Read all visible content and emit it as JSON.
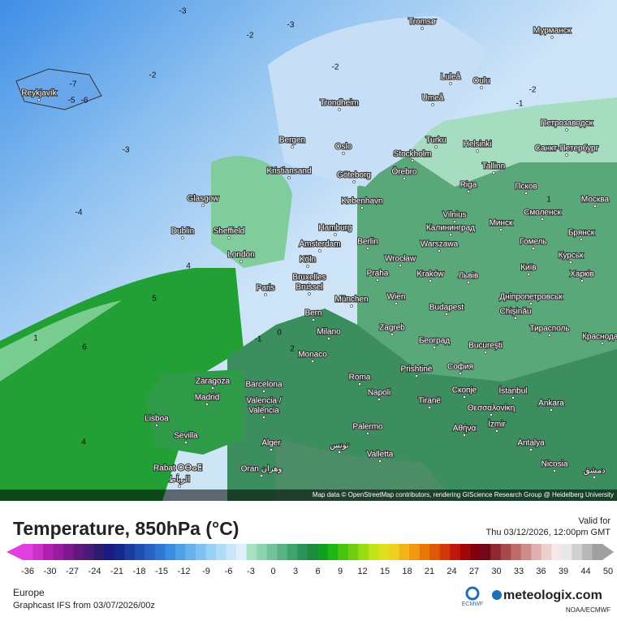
{
  "map": {
    "attribution": "Map data © OpenStreetMap contributors, rendering GIScience Research Group @ Heidelberg University",
    "cities": [
      "Tromsø",
      "Мурманск",
      "Reykjavík",
      "Luleå",
      "Oulu",
      "Umeå",
      "Trondheim",
      "Bergen",
      "Oslo",
      "Turku",
      "Helsinki",
      "Stockholm",
      "Kristiansand",
      "Göteborg",
      "Örebro",
      "Петрозаводск",
      "Санкт-Петербург",
      "Tallinn",
      "Glasgow",
      "København",
      "Riga",
      "Псков",
      "Москва",
      "Dublin",
      "Sheffield",
      "Hamburg",
      "Vilnius",
      "Минск",
      "Смоленск",
      "Брянск",
      "Калининград",
      "London",
      "Amsterdam",
      "Berlin",
      "Warszawa",
      "Гомель",
      "Köln",
      "Курськ",
      "Bruxelles",
      "Brussel",
      "Paris",
      "Wrocław",
      "Praha",
      "Kraków",
      "Львів",
      "Київ",
      "Харків",
      "München",
      "Wien",
      "Дніпропетровськ",
      "Bern",
      "Budapest",
      "Chișinău",
      "Milano",
      "Zagreb",
      "Тирасполь",
      "Monaco",
      "Београд",
      "București",
      "Краснодар",
      "Roma",
      "Prishtinë",
      "София",
      "Zaragoza",
      "Barcelona",
      "Madrid",
      "Napoli",
      "Tiranë",
      "Скопје",
      "İstanbul",
      "Valencia /",
      "València",
      "Θεσσαλονίκη",
      "Ankara",
      "Lisboa",
      "Αθήνα",
      "İzmir",
      "Sevilla",
      "Palermo",
      "Alger",
      "تونس",
      "Antalya",
      "Valletta",
      "Rabat ⵔⴱⴰⵟ",
      "الرباط",
      "Oran وهران",
      "Nicosia",
      "دمشق"
    ],
    "contour_labels": [
      -3,
      -2,
      -3,
      -2,
      -2,
      -7,
      -5,
      -6,
      -3,
      -4,
      4,
      5,
      6,
      1,
      4,
      2,
      -2,
      -1,
      1,
      -1,
      0
    ]
  },
  "legend": {
    "title": "Temperature, 850hPa (°C)",
    "valid_label": "Valid for",
    "valid_time": "Thu 03/12/2026, 12:00pm GMT",
    "ticks": [
      -36,
      -30,
      -27,
      -24,
      -21,
      -18,
      -15,
      -12,
      -9,
      -6,
      -3,
      0,
      3,
      6,
      9,
      12,
      15,
      18,
      21,
      24,
      27,
      30,
      33,
      36,
      39,
      44,
      50
    ],
    "colors": [
      "#e040e0",
      "#c830c8",
      "#b020b0",
      "#9a1aa0",
      "#7d1890",
      "#621880",
      "#4a1a78",
      "#2e1a70",
      "#1a1a80",
      "#14288c",
      "#1a3c9c",
      "#1f50b0",
      "#2664c4",
      "#2e78d4",
      "#3a8ce0",
      "#50a0e8",
      "#66b2ee",
      "#7cc2f2",
      "#96d0f5",
      "#b0dcf7",
      "#c8e6f8",
      "#e0f0fa",
      "#a8e0c4",
      "#8cd4b0",
      "#70c49a",
      "#58b484",
      "#40a46e",
      "#2c9458",
      "#1c8c3c",
      "#10a020",
      "#20b414",
      "#48c410",
      "#70d010",
      "#98dc14",
      "#c0e418",
      "#e0e020",
      "#f0d020",
      "#f0b418",
      "#f09810",
      "#e87808",
      "#e05808",
      "#d03808",
      "#c01808",
      "#a00808",
      "#800010",
      "#700818",
      "#902830",
      "#a84848",
      "#c06a6a",
      "#d08c8c",
      "#e0b0b0",
      "#ecd0d0",
      "#f4e8e8",
      "#e8e8e8",
      "#d0d0d0",
      "#b8b8b8",
      "#a0a0a0"
    ]
  },
  "footer": {
    "region": "Europe",
    "model": "Graphcast IFS from  03/07/2026/00z",
    "ecmwf": "ECMWF",
    "brand": "meteologix.com",
    "source": "NOAA/ECMWF"
  }
}
